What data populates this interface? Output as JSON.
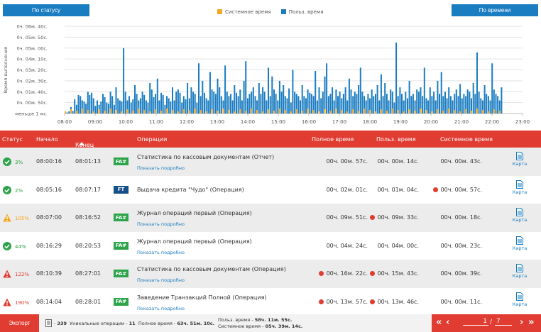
{
  "header": {
    "status_button": "По статусу",
    "time_button": "По времени",
    "legend": [
      {
        "label": "Системное время",
        "color": "#f5a623"
      },
      {
        "label": "Польз. время",
        "color": "#1a7cc1"
      }
    ]
  },
  "chart_data": {
    "type": "bar",
    "ylabel": "Время выполнения",
    "y_ticks": [
      "0ч. 06м. 40с.",
      "0ч. 05м. 50с.",
      "0ч. 05м. 00с.",
      "0ч. 04м. 10с.",
      "0ч. 03м. 20с.",
      "0ч. 02м. 30с.",
      "0ч. 01м. 40с.",
      "0ч. 00м. 50с.",
      "меньше 1 мс."
    ],
    "x_ticks": [
      "08:00",
      "09:00",
      "10:00",
      "11:00",
      "12:00",
      "13:00",
      "14:00",
      "15:00",
      "16:00",
      "17:00",
      "18:00",
      "19:00",
      "20:00",
      "21:00",
      "22:00",
      "23:00"
    ],
    "x_range": [
      "08:00",
      "23:00"
    ],
    "y_range_seconds": [
      0,
      400
    ],
    "grid": true,
    "legend_position": "top-center",
    "series": [
      {
        "name": "Системное время",
        "color": "#f5a623"
      },
      {
        "name": "Польз. время",
        "color": "#1a7cc1"
      }
    ],
    "bars_note_values_seconds_user": [
      8,
      5,
      10,
      30,
      12,
      65,
      40,
      85,
      80,
      60,
      55,
      45,
      100,
      85,
      95,
      70,
      35,
      60,
      40,
      55,
      90,
      75,
      50,
      45,
      100,
      80,
      40,
      120,
      70,
      60,
      55,
      300,
      100,
      60,
      80,
      50,
      65,
      130,
      90,
      60,
      70,
      100,
      85,
      60,
      50,
      140,
      110,
      75,
      90,
      160,
      60,
      95,
      85,
      40,
      80,
      70,
      55,
      120,
      60,
      100,
      110,
      95,
      50,
      80,
      65,
      140,
      70,
      120,
      100,
      90,
      50,
      230,
      80,
      150,
      95,
      70,
      60,
      190,
      110,
      100,
      90,
      160,
      120,
      80,
      60,
      220,
      100,
      80,
      90,
      60,
      130,
      95,
      80,
      110,
      60,
      150,
      240,
      70,
      90,
      100,
      120,
      80,
      60,
      140,
      90,
      120,
      100,
      60,
      210,
      80,
      170,
      110,
      90,
      60,
      150,
      100,
      130,
      80,
      70,
      115,
      50,
      200,
      100,
      90,
      80,
      60,
      130,
      80,
      70,
      110,
      95,
      90,
      80,
      195,
      60,
      120,
      70,
      100,
      170,
      230,
      80,
      90,
      120,
      60,
      110,
      80,
      100,
      70,
      90,
      120,
      60,
      160,
      110,
      80,
      100,
      90,
      130,
      210,
      100,
      80,
      60,
      90,
      70,
      110,
      80,
      90,
      130,
      60,
      180,
      80,
      140,
      90,
      60,
      110,
      100,
      50,
      325,
      80,
      120,
      90,
      60,
      100,
      70,
      150,
      80,
      90,
      60,
      110,
      100,
      120,
      80,
      210,
      70,
      60,
      120,
      80,
      100,
      60,
      150,
      90,
      190,
      80,
      100,
      70,
      120,
      80,
      60,
      90,
      110,
      80,
      135,
      70,
      90,
      80,
      110,
      100,
      70,
      140,
      90,
      280,
      100,
      70,
      60,
      130,
      90,
      80,
      60,
      230,
      110,
      90,
      80,
      60,
      120
    ]
  },
  "table": {
    "headers": {
      "status": "Статус",
      "start": "Начало",
      "end": "Конец",
      "operations": "Операции",
      "full_time": "Полное время",
      "user_time": "Польз. время",
      "system_time": "Системное время"
    },
    "rows": [
      {
        "status": "ok",
        "pct": "3%",
        "start": "08:00:16",
        "end": "08:01:13",
        "badge": "FA#",
        "name": "Статистика по кассовым документам (Отчет)",
        "more": "Показать подробно",
        "full": "00ч. 00м. 57с.",
        "user": "00ч. 00м. 14с.",
        "system": "00ч. 00м. 43с.",
        "full_dot": false,
        "user_dot": false,
        "system_dot": false,
        "map": "Карта"
      },
      {
        "status": "ok",
        "pct": "2%",
        "start": "08:05:16",
        "end": "08:07:17",
        "badge": "FT",
        "name": "Выдача кредита \"Чудо\" (Операция)",
        "more": "",
        "full": "00ч. 02м. 01с.",
        "user": "00ч. 01м. 04с.",
        "system": "00ч. 00м. 57с.",
        "full_dot": false,
        "user_dot": false,
        "system_dot": true,
        "map": "Карта"
      },
      {
        "status": "warn",
        "pct": "105%",
        "start": "08:07:00",
        "end": "08:16:52",
        "badge": "FA#",
        "name": "Журнал операций первый (Операция)",
        "more": "Показать подробно",
        "full": "00ч. 09м. 51с.",
        "user": "00ч. 09м. 33с.",
        "system": "00ч. 00м. 18с.",
        "full_dot": false,
        "user_dot": true,
        "system_dot": false,
        "map": "Карта"
      },
      {
        "status": "ok",
        "pct": "44%",
        "start": "08:16:29",
        "end": "08:20:53",
        "badge": "FA#",
        "name": "Журнал операций первый (Операция)",
        "more": "Показать подробно",
        "full": "00ч. 04м. 24с.",
        "user": "00ч. 04м. 00с.",
        "system": "00ч. 00м. 23с.",
        "full_dot": false,
        "user_dot": false,
        "system_dot": false,
        "map": "Карта"
      },
      {
        "status": "error",
        "pct": "122%",
        "start": "08:10:39",
        "end": "08:27:01",
        "badge": "FA#",
        "name": "Статистика по кассовым документам (Операция)",
        "more": "Показать подробно",
        "full": "00ч. 16м. 22с.",
        "user": "00ч. 15м. 43с.",
        "system": "00ч. 00м. 39с.",
        "full_dot": true,
        "user_dot": true,
        "system_dot": false,
        "map": "Карта"
      },
      {
        "status": "error",
        "pct": "190%",
        "start": "08:14:04",
        "end": "08:28:01",
        "badge": "FA#",
        "name": "Заведение Транзакций Полной (Операция)",
        "more": "Показать подробно",
        "full": "00ч. 13м. 57с.",
        "user": "00ч. 13м. 46с.",
        "system": "00ч. 00м. 11с.",
        "full_dot": true,
        "user_dot": true,
        "system_dot": false,
        "map": "Карта"
      }
    ]
  },
  "footer": {
    "export": "Экспорт",
    "count": "339",
    "unique_label": "Уникальные операции -",
    "unique_value": "11",
    "full_label": "Полное время -",
    "full_value": "63ч. 51м. 10с.",
    "user_label": "Польз. время -",
    "user_value": "58ч. 11м. 55с.",
    "system_label": "Системное время -",
    "system_value": "05ч. 39м. 14с.",
    "page_current": "1",
    "page_total": "7"
  },
  "colors": {
    "accent": "#e03c31",
    "brand": "#1a7cc1",
    "ok": "#2da34a",
    "warn": "#f5a623"
  }
}
